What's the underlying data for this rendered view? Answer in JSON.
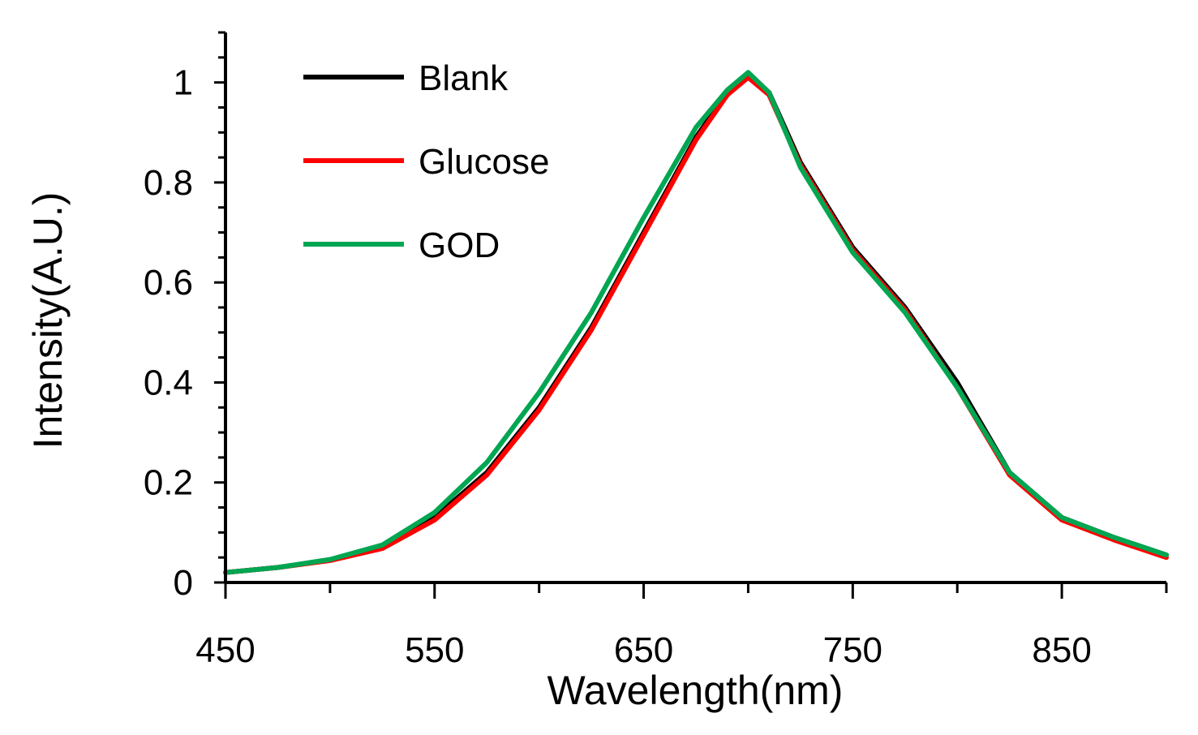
{
  "chart_data": {
    "type": "line",
    "title": "",
    "xlabel": "Wavelength(nm)",
    "ylabel": "Intensity(A.U.)",
    "xlim": [
      450,
      900
    ],
    "ylim": [
      0,
      1.1
    ],
    "x_ticks": [
      450,
      550,
      650,
      750,
      850
    ],
    "x_tick_labels": [
      "450",
      "550",
      "650",
      "750",
      "850"
    ],
    "y_ticks": [
      0,
      0.2,
      0.4,
      0.6,
      0.8,
      1
    ],
    "y_tick_labels": [
      "0",
      "0.2",
      "0.4",
      "0.6",
      "0.8",
      "1"
    ],
    "grid": false,
    "legend_position": "top-left",
    "x": [
      450,
      475,
      500,
      525,
      550,
      575,
      600,
      625,
      650,
      675,
      690,
      700,
      710,
      725,
      750,
      775,
      800,
      825,
      850,
      875,
      900
    ],
    "series": [
      {
        "name": "Blank",
        "color": "#000000",
        "values": [
          0.02,
          0.03,
          0.045,
          0.07,
          0.13,
          0.22,
          0.35,
          0.51,
          0.7,
          0.89,
          0.98,
          1.01,
          0.98,
          0.84,
          0.67,
          0.55,
          0.4,
          0.22,
          0.13,
          0.09,
          0.055
        ]
      },
      {
        "name": "Glucose",
        "color": "#ff0000",
        "values": [
          0.02,
          0.03,
          0.044,
          0.068,
          0.125,
          0.215,
          0.345,
          0.505,
          0.695,
          0.885,
          0.975,
          1.01,
          0.975,
          0.835,
          0.665,
          0.545,
          0.39,
          0.215,
          0.125,
          0.085,
          0.05
        ]
      },
      {
        "name": "GOD",
        "color": "#00a651",
        "values": [
          0.02,
          0.03,
          0.046,
          0.075,
          0.14,
          0.24,
          0.38,
          0.54,
          0.73,
          0.91,
          0.985,
          1.02,
          0.98,
          0.83,
          0.66,
          0.54,
          0.39,
          0.22,
          0.13,
          0.09,
          0.055
        ]
      }
    ]
  }
}
